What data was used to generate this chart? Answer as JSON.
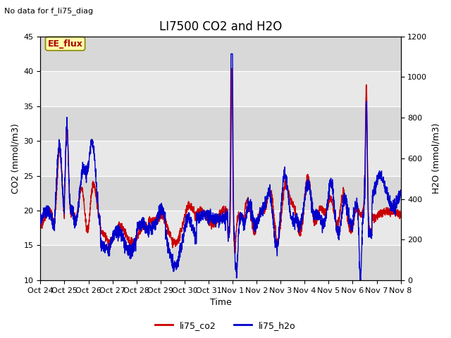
{
  "title": "LI7500 CO2 and H2O",
  "top_left_text": "No data for f_li75_diag",
  "annotation_text": "EE_flux",
  "xlabel": "Time",
  "ylabel_left": "CO2 (mmol/m3)",
  "ylabel_right": "H2O (mmol/m3)",
  "ylim_left": [
    10,
    45
  ],
  "ylim_right": [
    0,
    1200
  ],
  "xtick_labels": [
    "Oct 24",
    "Oct 25",
    "Oct 26",
    "Oct 27",
    "Oct 28",
    "Oct 29",
    "Oct 30",
    "Oct 31",
    "Nov 1",
    "Nov 2",
    "Nov 3",
    "Nov 4",
    "Nov 5",
    "Nov 6",
    "Nov 7",
    "Nov 8"
  ],
  "co2_color": "#cc0000",
  "h2o_color": "#0000cc",
  "legend_labels": [
    "li75_co2",
    "li75_h2o"
  ],
  "background_color": "#ffffff",
  "plot_bg_color": "#e8e8e8",
  "title_fontsize": 12,
  "axis_label_fontsize": 9,
  "tick_fontsize": 8,
  "annotation_fontsize": 9,
  "line_width": 1.0
}
